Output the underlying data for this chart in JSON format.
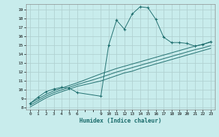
{
  "xlabel": "Humidex (Indice chaleur)",
  "ylabel": "",
  "bg_color": "#c8ecec",
  "grid_color": "#b0d0d0",
  "line_color": "#1a6b6b",
  "xlim": [
    -0.5,
    23.5
  ],
  "ylim": [
    7.8,
    19.6
  ],
  "yticks": [
    8,
    9,
    10,
    11,
    12,
    13,
    14,
    15,
    16,
    17,
    18,
    19
  ],
  "xticks": [
    0,
    1,
    2,
    3,
    4,
    5,
    6,
    9,
    10,
    11,
    12,
    13,
    14,
    15,
    16,
    17,
    18,
    19,
    20,
    21,
    22,
    23
  ],
  "main_x": [
    0,
    1,
    2,
    3,
    4,
    5,
    6,
    9,
    10,
    11,
    12,
    13,
    14,
    15,
    16,
    17,
    18,
    19,
    20,
    21,
    22,
    23
  ],
  "main_y": [
    8.5,
    9.2,
    9.8,
    10.1,
    10.3,
    10.2,
    9.7,
    9.3,
    15.0,
    17.8,
    16.8,
    18.5,
    19.3,
    19.2,
    17.9,
    15.9,
    15.3,
    15.3,
    15.2,
    14.9,
    15.1,
    15.4
  ],
  "line2_x": [
    0,
    1,
    2,
    3,
    4,
    5,
    6,
    9,
    10,
    11,
    12,
    13,
    14,
    15,
    16,
    17,
    18,
    19,
    20,
    21,
    22,
    23
  ],
  "line2_y": [
    8.5,
    9.0,
    9.5,
    9.9,
    10.2,
    10.5,
    10.8,
    11.8,
    12.1,
    12.4,
    12.65,
    12.9,
    13.15,
    13.4,
    13.65,
    13.9,
    14.15,
    14.4,
    14.65,
    14.9,
    15.1,
    15.35
  ],
  "line3_x": [
    0,
    1,
    2,
    3,
    4,
    5,
    6,
    9,
    10,
    11,
    12,
    13,
    14,
    15,
    16,
    17,
    18,
    19,
    20,
    21,
    22,
    23
  ],
  "line3_y": [
    8.3,
    8.8,
    9.3,
    9.7,
    10.0,
    10.3,
    10.6,
    11.4,
    11.7,
    12.0,
    12.25,
    12.5,
    12.75,
    13.0,
    13.25,
    13.5,
    13.75,
    14.0,
    14.25,
    14.5,
    14.7,
    14.95
  ],
  "line4_x": [
    0,
    1,
    2,
    3,
    4,
    5,
    6,
    9,
    10,
    11,
    12,
    13,
    14,
    15,
    16,
    17,
    18,
    19,
    20,
    21,
    22,
    23
  ],
  "line4_y": [
    8.1,
    8.6,
    9.1,
    9.5,
    9.8,
    10.1,
    10.4,
    11.0,
    11.3,
    11.6,
    11.9,
    12.1,
    12.4,
    12.65,
    12.9,
    13.15,
    13.4,
    13.65,
    13.9,
    14.15,
    14.4,
    14.65
  ]
}
